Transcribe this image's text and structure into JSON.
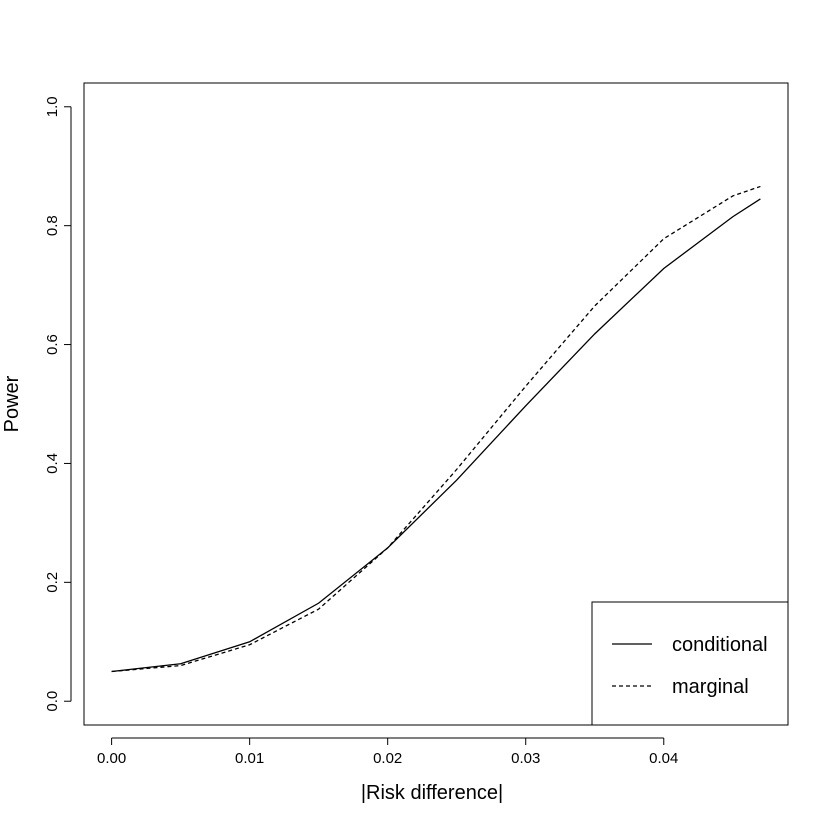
{
  "chart_data": {
    "type": "line",
    "title": "",
    "xlabel": "|Risk difference|",
    "ylabel": "Power",
    "xlim": [
      -0.002,
      0.049
    ],
    "ylim": [
      -0.04,
      1.04
    ],
    "xticks": [
      0.0,
      0.01,
      0.02,
      0.03,
      0.04
    ],
    "xtick_labels": [
      "0.00",
      "0.01",
      "0.02",
      "0.03",
      "0.04"
    ],
    "yticks": [
      0.0,
      0.2,
      0.4,
      0.6,
      0.8,
      1.0
    ],
    "ytick_labels": [
      "0.0",
      "0.2",
      "0.4",
      "0.6",
      "0.8",
      "1.0"
    ],
    "grid": false,
    "legend_position": "bottom-right",
    "x": [
      0.0,
      0.005,
      0.01,
      0.015,
      0.02,
      0.025,
      0.03,
      0.035,
      0.04,
      0.045,
      0.047
    ],
    "series": [
      {
        "name": "conditional",
        "style": "solid",
        "color": "#000000",
        "values": [
          0.05,
          0.063,
          0.1,
          0.165,
          0.258,
          0.372,
          0.497,
          0.618,
          0.728,
          0.815,
          0.845
        ]
      },
      {
        "name": "marginal",
        "style": "dashed",
        "color": "#000000",
        "values": [
          0.05,
          0.06,
          0.095,
          0.155,
          0.258,
          0.39,
          0.53,
          0.665,
          0.778,
          0.85,
          0.866
        ]
      }
    ]
  }
}
